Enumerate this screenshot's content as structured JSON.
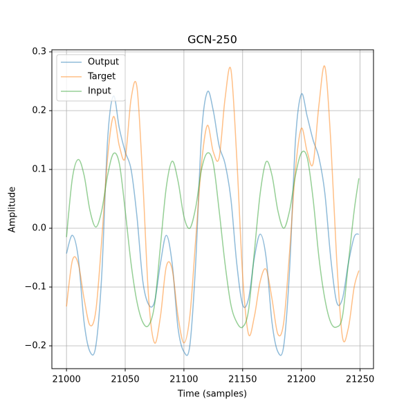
{
  "chart_data": {
    "type": "line",
    "title": "GCN-250",
    "x_label": "Time (samples)",
    "y_label": "Amplitude",
    "x": [
      21000,
      21005,
      21010,
      21015,
      21020,
      21025,
      21030,
      21035,
      21040,
      21045,
      21050,
      21055,
      21060,
      21065,
      21070,
      21075,
      21080,
      21085,
      21090,
      21095,
      21100,
      21105,
      21110,
      21115,
      21120,
      21125,
      21130,
      21135,
      21140,
      21145,
      21150,
      21155,
      21160,
      21165,
      21170,
      21175,
      21180,
      21185,
      21190,
      21195,
      21200,
      21205,
      21210,
      21215,
      21220,
      21225,
      21230,
      21235,
      21240,
      21245,
      21249
    ],
    "series": [
      {
        "name": "Output",
        "color": "#1f77b4",
        "values": [
          -0.043,
          -0.012,
          -0.05,
          -0.16,
          -0.21,
          -0.2,
          -0.08,
          0.15,
          0.225,
          0.17,
          0.13,
          0.1,
          0.02,
          -0.09,
          -0.13,
          -0.125,
          -0.06,
          -0.012,
          -0.06,
          -0.17,
          -0.21,
          -0.2,
          -0.06,
          0.16,
          0.232,
          0.2,
          0.14,
          0.11,
          0.05,
          -0.06,
          -0.13,
          -0.12,
          -0.05,
          -0.01,
          -0.05,
          -0.16,
          -0.21,
          -0.2,
          -0.07,
          0.15,
          0.228,
          0.19,
          0.15,
          0.12,
          0.06,
          -0.05,
          -0.125,
          -0.12,
          -0.06,
          -0.015,
          -0.01
        ]
      },
      {
        "name": "Target",
        "color": "#ff7f0e",
        "values": [
          -0.133,
          -0.055,
          -0.06,
          -0.12,
          -0.165,
          -0.14,
          -0.02,
          0.12,
          0.19,
          0.14,
          0.12,
          0.22,
          0.24,
          0.08,
          -0.12,
          -0.195,
          -0.15,
          -0.065,
          -0.07,
          -0.15,
          -0.195,
          -0.15,
          -0.02,
          0.11,
          0.175,
          0.13,
          0.12,
          0.22,
          0.27,
          0.12,
          -0.08,
          -0.18,
          -0.15,
          -0.09,
          -0.07,
          -0.12,
          -0.18,
          -0.16,
          -0.04,
          0.1,
          0.17,
          0.13,
          0.11,
          0.21,
          0.275,
          0.15,
          -0.05,
          -0.185,
          -0.17,
          -0.1,
          -0.072
        ]
      },
      {
        "name": "Input",
        "color": "#2ca02c",
        "values": [
          -0.015,
          0.085,
          0.117,
          0.09,
          0.03,
          0.002,
          0.03,
          0.09,
          0.127,
          0.11,
          0.03,
          -0.06,
          -0.125,
          -0.16,
          -0.165,
          -0.13,
          -0.03,
          0.07,
          0.114,
          0.08,
          0.02,
          0.0,
          0.035,
          0.1,
          0.128,
          0.11,
          0.03,
          -0.06,
          -0.13,
          -0.16,
          -0.168,
          -0.14,
          -0.04,
          0.06,
          0.113,
          0.09,
          0.03,
          0.0,
          0.03,
          0.09,
          0.128,
          0.12,
          0.05,
          -0.05,
          -0.12,
          -0.16,
          -0.168,
          -0.15,
          -0.06,
          0.03,
          0.085
        ]
      }
    ],
    "line_opacity": 0.5,
    "xlim": [
      20987.55,
      21261.45
    ],
    "ylim": [
      -0.2388,
      0.3035
    ],
    "xticks": [
      21000,
      21050,
      21100,
      21150,
      21200,
      21250
    ],
    "yticks": [
      {
        "value": -0.2,
        "label": "−0.2"
      },
      {
        "value": -0.1,
        "label": "−0.1"
      },
      {
        "value": 0,
        "label": "0.0"
      },
      0.1,
      0.2,
      0.3
    ],
    "grid": true,
    "legend": "upper left"
  }
}
